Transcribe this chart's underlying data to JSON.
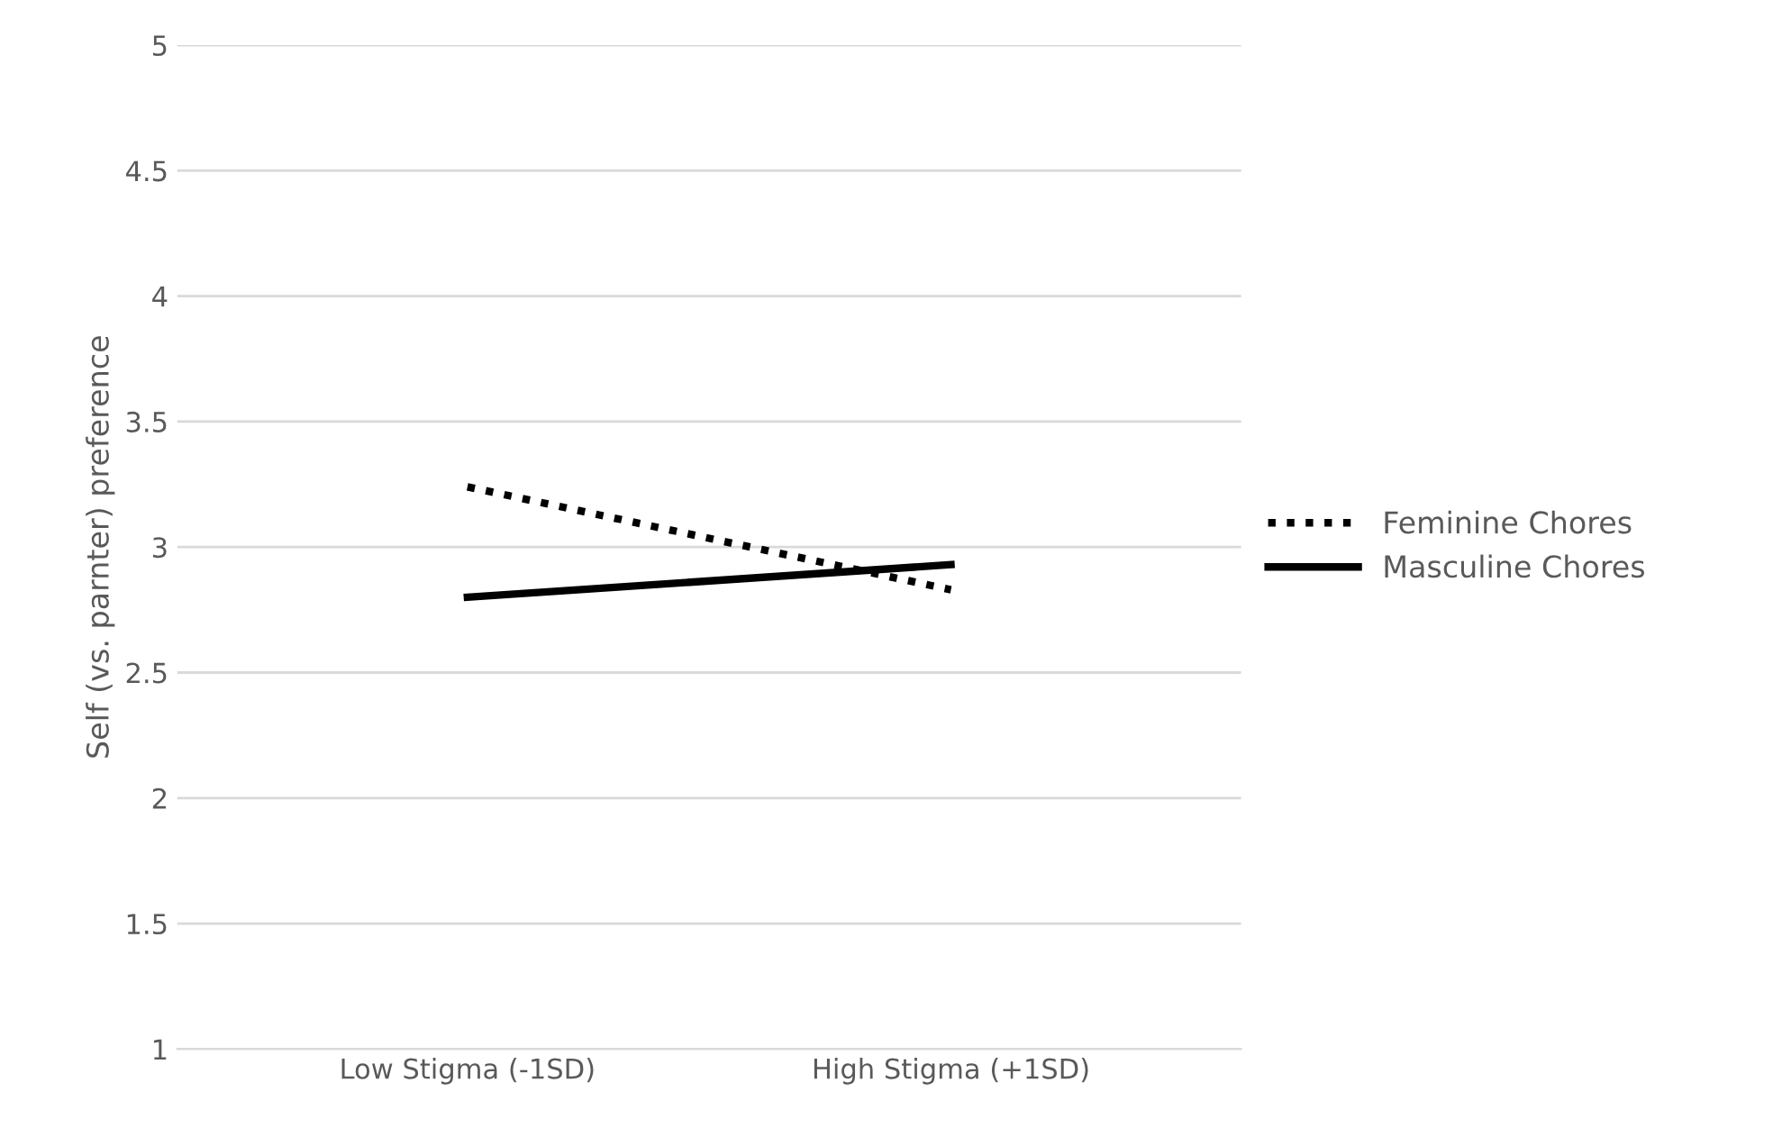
{
  "chart_data": {
    "type": "line",
    "ylabel": "Self (vs. parnter) preference",
    "categories": [
      "Low Stigma (-1SD)",
      "High Stigma (+1SD)"
    ],
    "series": [
      {
        "name": "Feminine Chores",
        "color": "#000000",
        "values": [
          3.24,
          2.83
        ],
        "line_style": "dotted"
      },
      {
        "name": "Masculine Chores",
        "color": "#000000",
        "values": [
          2.8,
          2.93
        ],
        "line_style": "solid"
      }
    ],
    "ylim": [
      1,
      5
    ],
    "yticks": [
      1,
      1.5,
      2,
      2.5,
      3,
      3.5,
      4,
      4.5,
      5
    ],
    "grid": "y",
    "legend": "right"
  }
}
